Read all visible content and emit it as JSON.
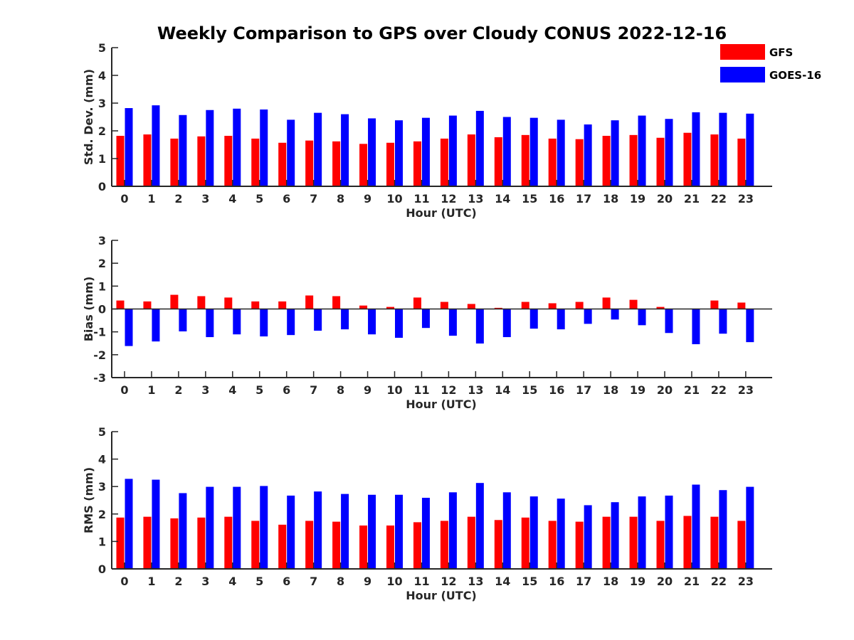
{
  "title": "Weekly Comparison to GPS over Cloudy CONUS 2022-12-16",
  "legend": {
    "placement": "top-right",
    "items": [
      {
        "label": "GFS",
        "color": "#ff0000"
      },
      {
        "label": "GOES-16",
        "color": "#0000ff"
      }
    ]
  },
  "colors": {
    "gfs": "#ff0000",
    "goes16": "#0000ff",
    "axis": "#262626"
  },
  "chart_data": [
    {
      "type": "bar",
      "xlabel": "Hour (UTC)",
      "ylabel": "Std. Dev. (mm)",
      "ylim": [
        0,
        5
      ],
      "yticks": [
        0,
        1,
        2,
        3,
        4,
        5
      ],
      "grid": false,
      "categories": [
        "0",
        "1",
        "2",
        "3",
        "4",
        "5",
        "6",
        "7",
        "8",
        "9",
        "10",
        "11",
        "12",
        "13",
        "14",
        "15",
        "16",
        "17",
        "18",
        "19",
        "20",
        "21",
        "22",
        "23"
      ],
      "series": [
        {
          "name": "GFS",
          "values": [
            1.82,
            1.87,
            1.72,
            1.8,
            1.82,
            1.72,
            1.57,
            1.65,
            1.62,
            1.53,
            1.57,
            1.62,
            1.72,
            1.87,
            1.77,
            1.85,
            1.72,
            1.7,
            1.82,
            1.85,
            1.75,
            1.93,
            1.87,
            1.72
          ]
        },
        {
          "name": "GOES-16",
          "values": [
            2.82,
            2.92,
            2.57,
            2.75,
            2.8,
            2.77,
            2.4,
            2.65,
            2.6,
            2.45,
            2.38,
            2.47,
            2.55,
            2.72,
            2.5,
            2.47,
            2.4,
            2.23,
            2.38,
            2.55,
            2.43,
            2.67,
            2.65,
            2.62
          ]
        }
      ]
    },
    {
      "type": "bar",
      "xlabel": "Hour (UTC)",
      "ylabel": "Bias (mm)",
      "ylim": [
        -3,
        3
      ],
      "yticks": [
        -3,
        -2,
        -1,
        0,
        1,
        2,
        3
      ],
      "grid": false,
      "zero_line": true,
      "categories": [
        "0",
        "1",
        "2",
        "3",
        "4",
        "5",
        "6",
        "7",
        "8",
        "9",
        "10",
        "11",
        "12",
        "13",
        "14",
        "15",
        "16",
        "17",
        "18",
        "19",
        "20",
        "21",
        "22",
        "23"
      ],
      "series": [
        {
          "name": "GFS",
          "values": [
            0.37,
            0.33,
            0.62,
            0.56,
            0.5,
            0.33,
            0.33,
            0.59,
            0.56,
            0.15,
            0.09,
            0.5,
            0.31,
            0.22,
            0.05,
            0.31,
            0.25,
            0.31,
            0.5,
            0.4,
            0.09,
            0.0,
            0.37,
            0.28
          ]
        },
        {
          "name": "GOES-16",
          "values": [
            -1.62,
            -1.42,
            -0.98,
            -1.23,
            -1.11,
            -1.2,
            -1.14,
            -0.95,
            -0.89,
            -1.11,
            -1.26,
            -0.83,
            -1.17,
            -1.51,
            -1.23,
            -0.86,
            -0.89,
            -0.65,
            -0.46,
            -0.71,
            -1.05,
            -1.54,
            -1.08,
            -1.45
          ]
        }
      ]
    },
    {
      "type": "bar",
      "xlabel": "Hour (UTC)",
      "ylabel": "RMS (mm)",
      "ylim": [
        0,
        5
      ],
      "yticks": [
        0,
        1,
        2,
        3,
        4,
        5
      ],
      "grid": false,
      "categories": [
        "0",
        "1",
        "2",
        "3",
        "4",
        "5",
        "6",
        "7",
        "8",
        "9",
        "10",
        "11",
        "12",
        "13",
        "14",
        "15",
        "16",
        "17",
        "18",
        "19",
        "20",
        "21",
        "22",
        "23"
      ],
      "series": [
        {
          "name": "GFS",
          "values": [
            1.87,
            1.9,
            1.84,
            1.87,
            1.9,
            1.75,
            1.61,
            1.75,
            1.72,
            1.58,
            1.58,
            1.7,
            1.75,
            1.9,
            1.78,
            1.87,
            1.75,
            1.72,
            1.9,
            1.9,
            1.75,
            1.93,
            1.9,
            1.75
          ]
        },
        {
          "name": "GOES-16",
          "values": [
            3.28,
            3.25,
            2.76,
            2.99,
            2.99,
            3.02,
            2.67,
            2.82,
            2.73,
            2.7,
            2.7,
            2.59,
            2.79,
            3.13,
            2.79,
            2.64,
            2.56,
            2.32,
            2.43,
            2.64,
            2.67,
            3.07,
            2.87,
            2.99
          ]
        }
      ]
    }
  ]
}
